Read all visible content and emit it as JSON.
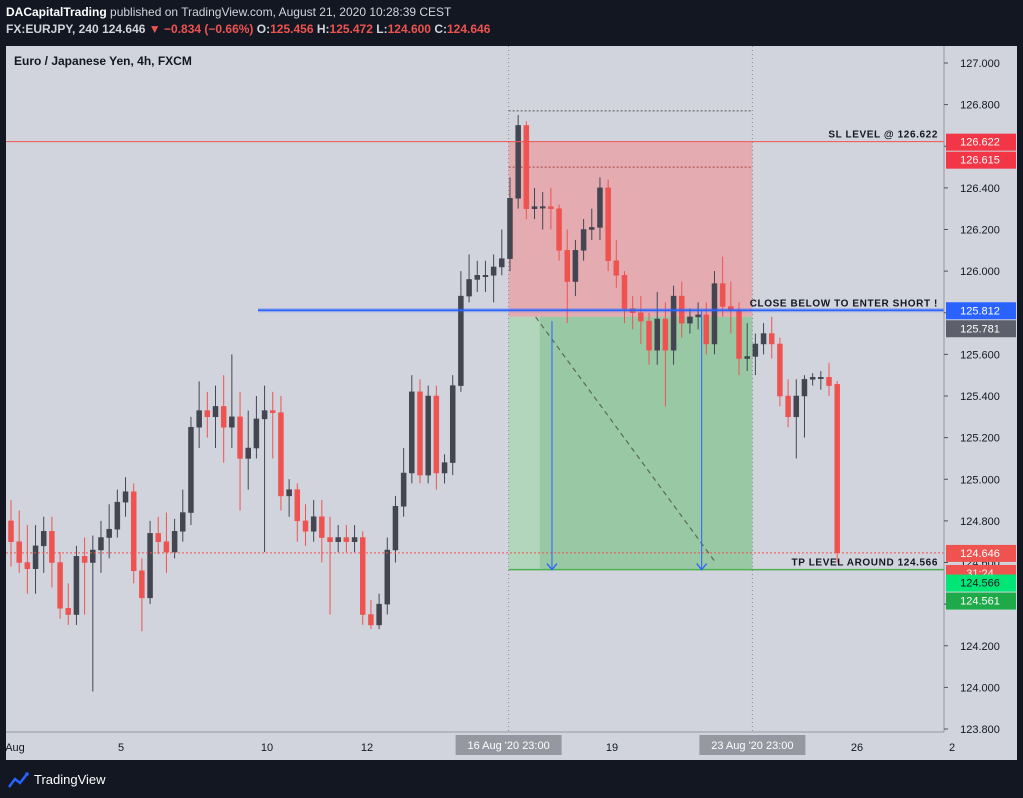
{
  "header": {
    "author": "DACapitalTrading",
    "published_text": "published on TradingView.com, August 21, 2020 10:28:39 CEST",
    "symbol": "FX:EURJPY, 240",
    "last": "124.646",
    "change_arrow": "▼",
    "change": "−0.834 (−0.66%)",
    "open_label": "O:",
    "open": "125.456",
    "high_label": "H:",
    "high": "125.472",
    "low_label": "L:",
    "low": "124.600",
    "close_label": "C:",
    "close": "124.646"
  },
  "footer": {
    "brand": "TradingView"
  },
  "colors": {
    "background": "#d1d4dc",
    "up": "#434651",
    "down": "#ef5350",
    "stop_zone": "#e8a3a8",
    "target_zone": "#8fc79a",
    "entry_line": "#2962ff",
    "tp_line": "#4caf50"
  },
  "chart_data": {
    "type": "candlestick",
    "title": "Euro / Japanese Yen, 4h, FXCM",
    "ylim": [
      123.7,
      127.15
    ],
    "y_ticks": [
      "127.000",
      "126.800",
      "126.600",
      "126.400",
      "126.200",
      "126.000",
      "125.800",
      "125.600",
      "125.400",
      "125.200",
      "125.000",
      "124.800",
      "124.600",
      "124.400",
      "124.200",
      "124.000",
      "123.800"
    ],
    "x_ticks": [
      "Aug",
      "5",
      "10",
      "12",
      "19",
      "26",
      "2"
    ],
    "x_highlight_labels": [
      "16 Aug '20   23:00",
      "23 Aug '20   23:00"
    ],
    "price_labels": {
      "sl": "126.622",
      "sl_alt": "126.615",
      "entry": "125.812",
      "entry_alt": "125.781",
      "last": "124.646",
      "countdown": "31:24",
      "tp": "124.566",
      "tp_alt": "124.561"
    },
    "annotations": {
      "sl": "SL LEVEL @ 126.622",
      "entry": "CLOSE BELOW TO ENTER SHORT !",
      "tp": "TP LEVEL AROUND 124.566"
    },
    "candles": [
      [
        124.8,
        124.7,
        124.9,
        124.58
      ],
      [
        124.7,
        124.6,
        124.85,
        124.55
      ],
      [
        124.6,
        124.57,
        124.78,
        124.45
      ],
      [
        124.57,
        124.68,
        124.78,
        124.45
      ],
      [
        124.68,
        124.75,
        124.82,
        124.55
      ],
      [
        124.75,
        124.6,
        124.82,
        124.48
      ],
      [
        124.6,
        124.38,
        124.65,
        124.33
      ],
      [
        124.38,
        124.35,
        124.5,
        124.3
      ],
      [
        124.35,
        124.63,
        124.68,
        124.3
      ],
      [
        124.63,
        124.6,
        124.72,
        124.35
      ],
      [
        124.6,
        124.66,
        124.73,
        123.98
      ],
      [
        124.66,
        124.72,
        124.8,
        124.55
      ],
      [
        124.72,
        124.76,
        124.88,
        124.62
      ],
      [
        124.76,
        124.89,
        124.95,
        124.72
      ],
      [
        124.89,
        124.94,
        125.01,
        124.82
      ],
      [
        124.94,
        124.56,
        124.98,
        124.5
      ],
      [
        124.56,
        124.43,
        124.62,
        124.27
      ],
      [
        124.43,
        124.74,
        124.8,
        124.4
      ],
      [
        124.74,
        124.7,
        124.82,
        124.64
      ],
      [
        124.7,
        124.65,
        124.84,
        124.55
      ],
      [
        124.65,
        124.75,
        124.81,
        124.62
      ],
      [
        124.75,
        124.84,
        124.95,
        124.7
      ],
      [
        124.84,
        125.25,
        125.3,
        124.78
      ],
      [
        125.25,
        125.33,
        125.47,
        125.15
      ],
      [
        125.33,
        125.3,
        125.42,
        125.2
      ],
      [
        125.3,
        125.35,
        125.45,
        125.15
      ],
      [
        125.35,
        125.25,
        125.5,
        125.08
      ],
      [
        125.25,
        125.3,
        125.6,
        125.15
      ],
      [
        125.3,
        125.1,
        125.42,
        124.85
      ],
      [
        125.1,
        125.15,
        125.33,
        124.95
      ],
      [
        125.15,
        125.29,
        125.4,
        125.1
      ],
      [
        125.29,
        125.33,
        125.45,
        124.65
      ],
      [
        125.33,
        125.32,
        125.42,
        125.1
      ],
      [
        125.32,
        124.92,
        125.4,
        124.85
      ],
      [
        124.92,
        124.95,
        125.0,
        124.82
      ],
      [
        124.95,
        124.8,
        124.98,
        124.7
      ],
      [
        124.8,
        124.75,
        124.88,
        124.68
      ],
      [
        124.75,
        124.82,
        124.9,
        124.7
      ],
      [
        124.82,
        124.72,
        124.9,
        124.6
      ],
      [
        124.72,
        124.7,
        124.82,
        124.35
      ],
      [
        124.7,
        124.72,
        124.78,
        124.65
      ],
      [
        124.72,
        124.7,
        124.78,
        124.65
      ],
      [
        124.7,
        124.72,
        124.78,
        124.65
      ],
      [
        124.72,
        124.35,
        124.75,
        124.3
      ],
      [
        124.35,
        124.3,
        124.42,
        124.28
      ],
      [
        124.3,
        124.4,
        124.45,
        124.28
      ],
      [
        124.4,
        124.66,
        124.72,
        124.35
      ],
      [
        124.66,
        124.87,
        124.92,
        124.6
      ],
      [
        124.87,
        125.03,
        125.15,
        124.82
      ],
      [
        125.03,
        125.42,
        125.5,
        124.98
      ],
      [
        125.42,
        125.02,
        125.48,
        124.98
      ],
      [
        125.02,
        125.4,
        125.45,
        124.98
      ],
      [
        125.4,
        125.03,
        125.45,
        124.95
      ],
      [
        125.03,
        125.08,
        125.12,
        124.98
      ],
      [
        125.08,
        125.45,
        125.5,
        125.02
      ],
      [
        125.45,
        125.88,
        126.0,
        125.42
      ],
      [
        125.88,
        125.96,
        126.08,
        125.85
      ],
      [
        125.96,
        125.98,
        126.05,
        125.9
      ],
      [
        125.98,
        125.98,
        126.05,
        125.9
      ],
      [
        125.98,
        126.02,
        126.08,
        125.85
      ],
      [
        126.02,
        126.06,
        126.2,
        125.98
      ],
      [
        126.06,
        126.35,
        126.45,
        126.0
      ],
      [
        126.35,
        126.7,
        126.75,
        126.3
      ],
      [
        126.7,
        126.3,
        126.72,
        126.25
      ],
      [
        126.3,
        126.31,
        126.4,
        126.25
      ],
      [
        126.31,
        126.31,
        126.38,
        126.2
      ],
      [
        126.31,
        126.3,
        126.4,
        126.2
      ],
      [
        126.3,
        126.1,
        126.32,
        126.05
      ],
      [
        126.1,
        125.95,
        126.2,
        125.75
      ],
      [
        125.95,
        126.1,
        126.15,
        125.88
      ],
      [
        126.1,
        126.2,
        126.25,
        126.05
      ],
      [
        126.2,
        126.21,
        126.3,
        126.15
      ],
      [
        126.21,
        126.4,
        126.45,
        126.15
      ],
      [
        126.4,
        126.05,
        126.44,
        126.0
      ],
      [
        126.05,
        125.98,
        126.15,
        125.92
      ],
      [
        125.98,
        125.82,
        126.0,
        125.75
      ],
      [
        125.82,
        125.8,
        125.88,
        125.72
      ],
      [
        125.8,
        125.76,
        125.88,
        125.65
      ],
      [
        125.76,
        125.62,
        125.8,
        125.55
      ],
      [
        125.62,
        125.77,
        125.9,
        125.55
      ],
      [
        125.77,
        125.62,
        125.85,
        125.35
      ],
      [
        125.62,
        125.88,
        125.93,
        125.55
      ],
      [
        125.88,
        125.75,
        125.95,
        125.68
      ],
      [
        125.75,
        125.78,
        125.82,
        125.7
      ],
      [
        125.78,
        125.79,
        125.85,
        125.72
      ],
      [
        125.79,
        125.65,
        125.85,
        125.6
      ],
      [
        125.65,
        125.94,
        126.0,
        125.6
      ],
      [
        125.94,
        125.83,
        126.07,
        125.78
      ],
      [
        125.83,
        125.81,
        125.95,
        125.7
      ],
      [
        125.81,
        125.58,
        125.85,
        125.5
      ],
      [
        125.58,
        125.59,
        125.75,
        125.52
      ],
      [
        125.59,
        125.65,
        125.7,
        125.5
      ],
      [
        125.65,
        125.7,
        125.75,
        125.6
      ],
      [
        125.7,
        125.65,
        125.78,
        125.58
      ],
      [
        125.65,
        125.4,
        125.68,
        125.35
      ],
      [
        125.4,
        125.3,
        125.48,
        125.25
      ],
      [
        125.3,
        125.4,
        125.48,
        125.1
      ],
      [
        125.4,
        125.48,
        125.5,
        125.2
      ],
      [
        125.48,
        125.49,
        125.51,
        125.45
      ],
      [
        125.49,
        125.49,
        125.52,
        125.43
      ],
      [
        125.49,
        125.45,
        125.56,
        125.4
      ],
      [
        125.456,
        124.646,
        125.472,
        124.6
      ]
    ]
  }
}
